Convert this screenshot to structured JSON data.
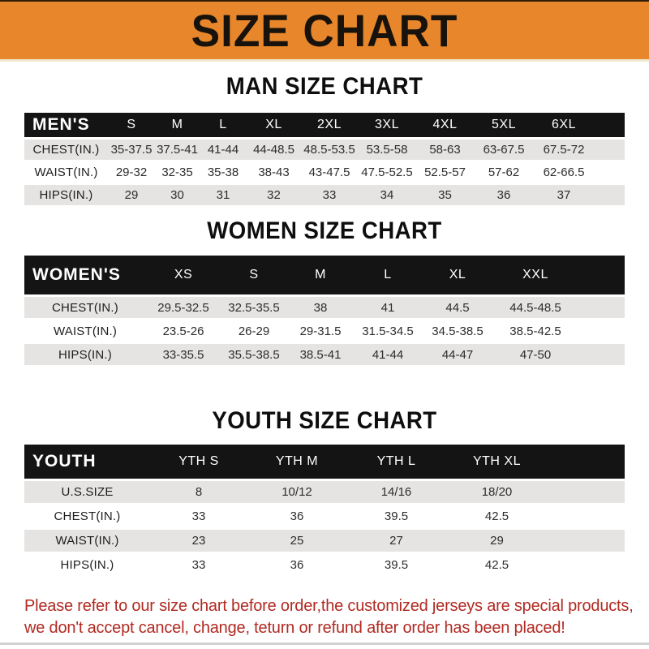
{
  "banner": {
    "title": "SIZE CHART"
  },
  "colors": {
    "banner_bg": "#E8862B",
    "band_bg": "#141414",
    "row_alt_bg": "#E5E4E2",
    "footer_text": "#B02A22"
  },
  "sections": [
    {
      "title": "MAN SIZE CHART",
      "table": {
        "label": "MEN'S",
        "columns": [
          "S",
          "M",
          "L",
          "XL",
          "2XL",
          "3XL",
          "4XL",
          "5XL",
          "6XL"
        ],
        "rows": [
          {
            "label": "CHEST(IN.)",
            "values": [
              "35-37.5",
              "37.5-41",
              "41-44",
              "44-48.5",
              "48.5-53.5",
              "53.5-58",
              "58-63",
              "63-67.5",
              "67.5-72"
            ]
          },
          {
            "label": "WAIST(IN.)",
            "values": [
              "29-32",
              "32-35",
              "35-38",
              "38-43",
              "43-47.5",
              "47.5-52.5",
              "52.5-57",
              "57-62",
              "62-66.5"
            ]
          },
          {
            "label": "HIPS(IN.)",
            "values": [
              "29",
              "30",
              "31",
              "32",
              "33",
              "34",
              "35",
              "36",
              "37"
            ]
          }
        ]
      }
    },
    {
      "title": "WOMEN SIZE CHART",
      "table": {
        "label": "WOMEN'S",
        "columns": [
          "XS",
          "S",
          "M",
          "L",
          "XL",
          "XXL"
        ],
        "rows": [
          {
            "label": "CHEST(IN.)",
            "values": [
              "29.5-32.5",
              "32.5-35.5",
              "38",
              "41",
              "44.5",
              "44.5-48.5"
            ]
          },
          {
            "label": "WAIST(IN.)",
            "values": [
              "23.5-26",
              "26-29",
              "29-31.5",
              "31.5-34.5",
              "34.5-38.5",
              "38.5-42.5"
            ]
          },
          {
            "label": "HIPS(IN.)",
            "values": [
              "33-35.5",
              "35.5-38.5",
              "38.5-41",
              "41-44",
              "44-47",
              "47-50"
            ]
          }
        ]
      }
    },
    {
      "title": "YOUTH SIZE CHART",
      "table": {
        "label": "YOUTH",
        "columns": [
          "YTH S",
          "YTH M",
          "YTH L",
          "YTH XL"
        ],
        "rows": [
          {
            "label": "U.S.SIZE",
            "values": [
              "8",
              "10/12",
              "14/16",
              "18/20"
            ]
          },
          {
            "label": "CHEST(IN.)",
            "values": [
              "33",
              "36",
              "39.5",
              "42.5"
            ]
          },
          {
            "label": "WAIST(IN.)",
            "values": [
              "23",
              "25",
              "27",
              "29"
            ]
          },
          {
            "label": "HIPS(IN.)",
            "values": [
              "33",
              "36",
              "39.5",
              "42.5"
            ]
          }
        ]
      }
    }
  ],
  "footer": {
    "lines": [
      "Please refer to our size chart before order,the customized jerseys are special products,",
      "we don't accept cancel, change, teturn or refund after order has been placed!"
    ]
  }
}
